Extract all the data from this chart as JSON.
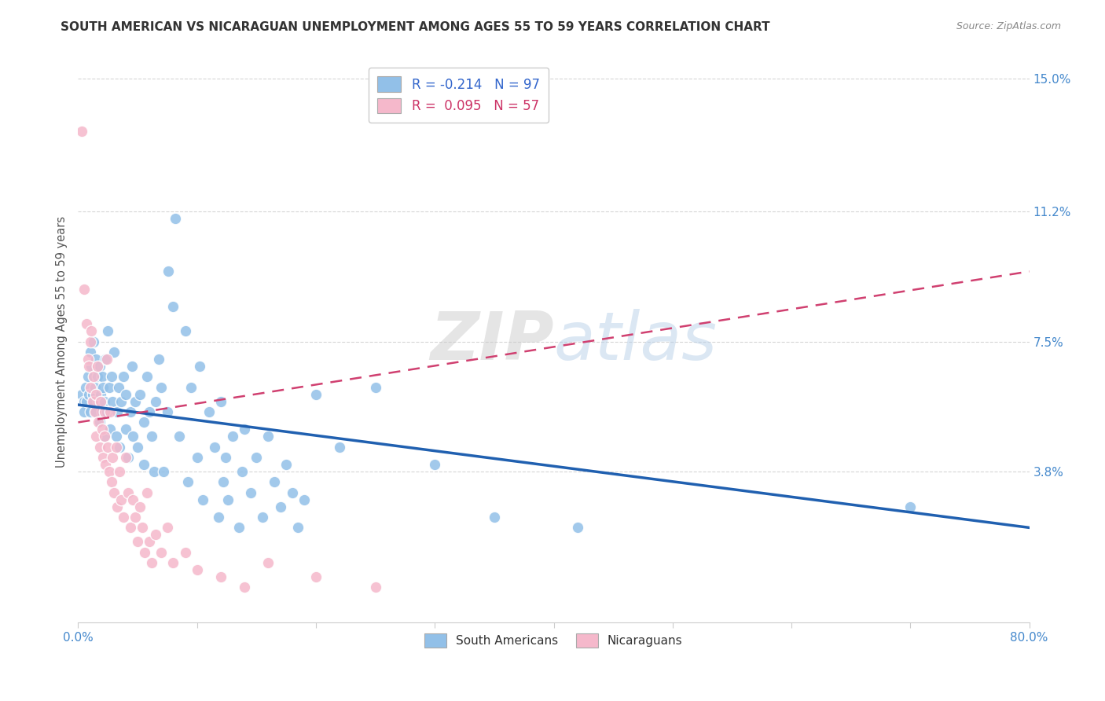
{
  "title": "SOUTH AMERICAN VS NICARAGUAN UNEMPLOYMENT AMONG AGES 55 TO 59 YEARS CORRELATION CHART",
  "source": "Source: ZipAtlas.com",
  "xlabel_ticks_pos": [
    0.0,
    0.1,
    0.2,
    0.3,
    0.4,
    0.5,
    0.6,
    0.7,
    0.8
  ],
  "xlabel_ticks_labels": [
    "0.0%",
    "",
    "",
    "",
    "",
    "",
    "",
    "",
    "80.0%"
  ],
  "ylabel_ticks": [
    "3.8%",
    "7.5%",
    "11.2%",
    "15.0%"
  ],
  "ylabel_tick_vals": [
    0.038,
    0.075,
    0.112,
    0.15
  ],
  "ylabel_label": "Unemployment Among Ages 55 to 59 years",
  "legend_items": [
    {
      "label": "R = -0.214   N = 97",
      "color": "#a8c8f0"
    },
    {
      "label": "R =  0.095   N = 57",
      "color": "#f5b8cb"
    }
  ],
  "legend_labels_bottom": [
    "South Americans",
    "Nicaraguans"
  ],
  "blue_color": "#92c0e8",
  "pink_color": "#f5b8cb",
  "blue_line_color": "#2060b0",
  "pink_line_color": "#d04070",
  "watermark_zip": "ZIP",
  "watermark_atlas": "atlas",
  "xlim": [
    0.0,
    0.8
  ],
  "ylim": [
    -0.005,
    0.155
  ],
  "blue_regression": {
    "x_start": 0.0,
    "y_start": 0.057,
    "x_end": 0.8,
    "y_end": 0.022
  },
  "pink_regression": {
    "x_start": 0.0,
    "y_start": 0.052,
    "x_end": 0.8,
    "y_end": 0.095
  },
  "south_americans": [
    [
      0.003,
      0.06
    ],
    [
      0.005,
      0.058
    ],
    [
      0.005,
      0.055
    ],
    [
      0.006,
      0.062
    ],
    [
      0.007,
      0.058
    ],
    [
      0.008,
      0.065
    ],
    [
      0.009,
      0.06
    ],
    [
      0.01,
      0.072
    ],
    [
      0.01,
      0.055
    ],
    [
      0.011,
      0.068
    ],
    [
      0.012,
      0.06
    ],
    [
      0.013,
      0.058
    ],
    [
      0.013,
      0.075
    ],
    [
      0.014,
      0.062
    ],
    [
      0.015,
      0.07
    ],
    [
      0.015,
      0.055
    ],
    [
      0.016,
      0.065
    ],
    [
      0.017,
      0.058
    ],
    [
      0.018,
      0.052
    ],
    [
      0.018,
      0.068
    ],
    [
      0.019,
      0.06
    ],
    [
      0.02,
      0.055
    ],
    [
      0.02,
      0.065
    ],
    [
      0.021,
      0.062
    ],
    [
      0.022,
      0.058
    ],
    [
      0.022,
      0.048
    ],
    [
      0.023,
      0.07
    ],
    [
      0.024,
      0.055
    ],
    [
      0.025,
      0.078
    ],
    [
      0.026,
      0.062
    ],
    [
      0.027,
      0.05
    ],
    [
      0.028,
      0.065
    ],
    [
      0.029,
      0.058
    ],
    [
      0.03,
      0.072
    ],
    [
      0.032,
      0.048
    ],
    [
      0.033,
      0.055
    ],
    [
      0.034,
      0.062
    ],
    [
      0.035,
      0.045
    ],
    [
      0.036,
      0.058
    ],
    [
      0.038,
      0.065
    ],
    [
      0.04,
      0.05
    ],
    [
      0.04,
      0.06
    ],
    [
      0.042,
      0.042
    ],
    [
      0.044,
      0.055
    ],
    [
      0.045,
      0.068
    ],
    [
      0.046,
      0.048
    ],
    [
      0.048,
      0.058
    ],
    [
      0.05,
      0.045
    ],
    [
      0.052,
      0.06
    ],
    [
      0.055,
      0.052
    ],
    [
      0.055,
      0.04
    ],
    [
      0.058,
      0.065
    ],
    [
      0.06,
      0.055
    ],
    [
      0.062,
      0.048
    ],
    [
      0.064,
      0.038
    ],
    [
      0.065,
      0.058
    ],
    [
      0.068,
      0.07
    ],
    [
      0.07,
      0.062
    ],
    [
      0.072,
      0.038
    ],
    [
      0.075,
      0.055
    ],
    [
      0.076,
      0.095
    ],
    [
      0.08,
      0.085
    ],
    [
      0.082,
      0.11
    ],
    [
      0.085,
      0.048
    ],
    [
      0.09,
      0.078
    ],
    [
      0.092,
      0.035
    ],
    [
      0.095,
      0.062
    ],
    [
      0.1,
      0.042
    ],
    [
      0.102,
      0.068
    ],
    [
      0.105,
      0.03
    ],
    [
      0.11,
      0.055
    ],
    [
      0.115,
      0.045
    ],
    [
      0.118,
      0.025
    ],
    [
      0.12,
      0.058
    ],
    [
      0.122,
      0.035
    ],
    [
      0.124,
      0.042
    ],
    [
      0.126,
      0.03
    ],
    [
      0.13,
      0.048
    ],
    [
      0.135,
      0.022
    ],
    [
      0.138,
      0.038
    ],
    [
      0.14,
      0.05
    ],
    [
      0.145,
      0.032
    ],
    [
      0.15,
      0.042
    ],
    [
      0.155,
      0.025
    ],
    [
      0.16,
      0.048
    ],
    [
      0.165,
      0.035
    ],
    [
      0.17,
      0.028
    ],
    [
      0.175,
      0.04
    ],
    [
      0.18,
      0.032
    ],
    [
      0.185,
      0.022
    ],
    [
      0.19,
      0.03
    ],
    [
      0.2,
      0.06
    ],
    [
      0.22,
      0.045
    ],
    [
      0.25,
      0.062
    ],
    [
      0.3,
      0.04
    ],
    [
      0.35,
      0.025
    ],
    [
      0.42,
      0.022
    ],
    [
      0.7,
      0.028
    ]
  ],
  "nicaraguans": [
    [
      0.003,
      0.135
    ],
    [
      0.005,
      0.09
    ],
    [
      0.007,
      0.08
    ],
    [
      0.008,
      0.07
    ],
    [
      0.009,
      0.068
    ],
    [
      0.01,
      0.075
    ],
    [
      0.01,
      0.062
    ],
    [
      0.011,
      0.078
    ],
    [
      0.012,
      0.058
    ],
    [
      0.013,
      0.065
    ],
    [
      0.014,
      0.055
    ],
    [
      0.015,
      0.06
    ],
    [
      0.015,
      0.048
    ],
    [
      0.016,
      0.068
    ],
    [
      0.017,
      0.052
    ],
    [
      0.018,
      0.045
    ],
    [
      0.019,
      0.058
    ],
    [
      0.02,
      0.05
    ],
    [
      0.021,
      0.042
    ],
    [
      0.022,
      0.055
    ],
    [
      0.022,
      0.048
    ],
    [
      0.023,
      0.04
    ],
    [
      0.024,
      0.07
    ],
    [
      0.025,
      0.045
    ],
    [
      0.026,
      0.038
    ],
    [
      0.027,
      0.055
    ],
    [
      0.028,
      0.035
    ],
    [
      0.029,
      0.042
    ],
    [
      0.03,
      0.032
    ],
    [
      0.032,
      0.045
    ],
    [
      0.033,
      0.028
    ],
    [
      0.035,
      0.038
    ],
    [
      0.036,
      0.03
    ],
    [
      0.038,
      0.025
    ],
    [
      0.04,
      0.042
    ],
    [
      0.042,
      0.032
    ],
    [
      0.044,
      0.022
    ],
    [
      0.046,
      0.03
    ],
    [
      0.048,
      0.025
    ],
    [
      0.05,
      0.018
    ],
    [
      0.052,
      0.028
    ],
    [
      0.054,
      0.022
    ],
    [
      0.056,
      0.015
    ],
    [
      0.058,
      0.032
    ],
    [
      0.06,
      0.018
    ],
    [
      0.062,
      0.012
    ],
    [
      0.065,
      0.02
    ],
    [
      0.07,
      0.015
    ],
    [
      0.075,
      0.022
    ],
    [
      0.08,
      0.012
    ],
    [
      0.09,
      0.015
    ],
    [
      0.1,
      0.01
    ],
    [
      0.12,
      0.008
    ],
    [
      0.14,
      0.005
    ],
    [
      0.16,
      0.012
    ],
    [
      0.2,
      0.008
    ],
    [
      0.25,
      0.005
    ]
  ]
}
